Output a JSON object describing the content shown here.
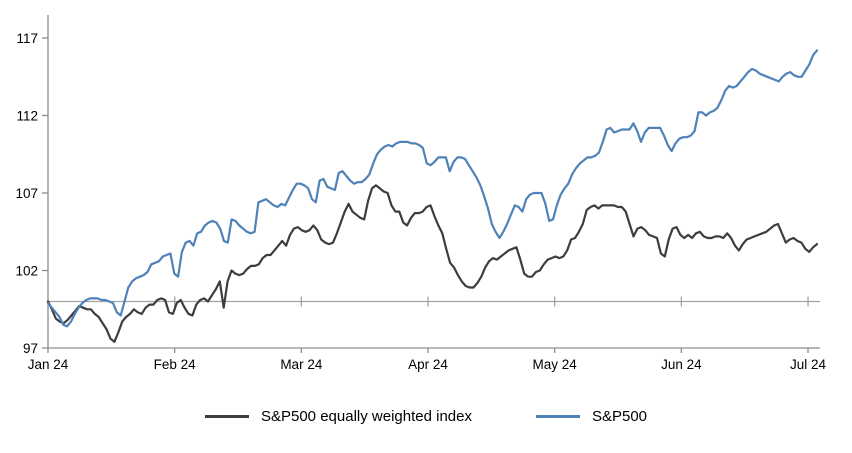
{
  "chart_data": {
    "type": "line",
    "title": "",
    "x_axis": {
      "labels": [
        "Jan 24",
        "Feb 24",
        "Mar 24",
        "Apr 24",
        "May 24",
        "Jun 24",
        "Jul 24"
      ],
      "unit": "month",
      "range_months": [
        0,
        6.07
      ]
    },
    "y_axis": {
      "ticks": [
        97,
        102,
        107,
        112,
        117
      ],
      "range": [
        97,
        118.5
      ]
    },
    "reference_line": {
      "value": 100,
      "color": "#a3a3a3"
    },
    "axis_color": "#8c8c8c",
    "legend_position": "bottom-center",
    "grid": false,
    "series": [
      {
        "name": "S&P500 equally weighted index",
        "color": "#3d3d3d",
        "values": [
          100.0,
          99.5,
          98.9,
          98.7,
          98.6,
          98.8,
          99.1,
          99.4,
          99.7,
          99.6,
          99.5,
          99.5,
          99.2,
          99.0,
          98.6,
          98.2,
          97.6,
          97.4,
          98.0,
          98.7,
          99.0,
          99.2,
          99.5,
          99.3,
          99.2,
          99.6,
          99.8,
          99.8,
          100.1,
          100.2,
          100.1,
          99.3,
          99.2,
          99.9,
          100.1,
          99.6,
          99.2,
          99.1,
          99.8,
          100.1,
          100.2,
          100.0,
          100.4,
          100.8,
          101.3,
          99.6,
          101.3,
          102.0,
          101.8,
          101.7,
          101.8,
          102.1,
          102.3,
          102.3,
          102.4,
          102.8,
          103.0,
          103.0,
          103.3,
          103.6,
          103.9,
          103.6,
          104.3,
          104.7,
          104.8,
          104.6,
          104.5,
          104.6,
          104.9,
          104.6,
          104.0,
          103.8,
          103.7,
          103.8,
          104.4,
          105.1,
          105.8,
          106.3,
          105.8,
          105.6,
          105.4,
          105.3,
          106.5,
          107.3,
          107.5,
          107.3,
          107.1,
          107.0,
          106.2,
          105.8,
          105.8,
          105.1,
          104.9,
          105.4,
          105.7,
          105.7,
          105.8,
          106.1,
          106.2,
          105.5,
          104.9,
          104.4,
          103.4,
          102.5,
          102.2,
          101.7,
          101.3,
          101.0,
          100.9,
          100.9,
          101.2,
          101.6,
          102.2,
          102.6,
          102.8,
          102.7,
          102.9,
          103.1,
          103.3,
          103.4,
          103.5,
          102.7,
          101.8,
          101.6,
          101.6,
          101.9,
          102.0,
          102.4,
          102.7,
          102.8,
          102.9,
          102.8,
          102.9,
          103.3,
          104.0,
          104.1,
          104.5,
          105.0,
          105.9,
          106.1,
          106.2,
          106.0,
          106.2,
          106.2,
          106.2,
          106.2,
          106.1,
          106.1,
          105.8,
          105.0,
          104.2,
          104.7,
          104.8,
          104.6,
          104.3,
          104.2,
          104.1,
          103.1,
          102.9,
          104.0,
          104.7,
          104.8,
          104.3,
          104.1,
          104.3,
          104.1,
          104.4,
          104.5,
          104.2,
          104.1,
          104.1,
          104.2,
          104.2,
          104.1,
          104.4,
          104.1,
          103.6,
          103.3,
          103.7,
          104.0,
          104.1,
          104.2,
          104.3,
          104.4,
          104.5,
          104.7,
          104.9,
          105.0,
          104.4,
          103.8,
          104.0,
          104.1,
          103.9,
          103.8,
          103.4,
          103.2,
          103.5,
          103.7
        ]
      },
      {
        "name": "S&P500",
        "color": "#4e82b8",
        "values": [
          99.9,
          99.6,
          99.3,
          99.0,
          98.5,
          98.4,
          98.7,
          99.2,
          99.6,
          99.9,
          100.1,
          100.2,
          100.2,
          100.2,
          100.1,
          100.1,
          100.0,
          99.9,
          99.3,
          99.1,
          100.0,
          100.9,
          101.3,
          101.5,
          101.6,
          101.7,
          101.9,
          102.4,
          102.5,
          102.6,
          102.9,
          103.0,
          103.1,
          101.8,
          101.6,
          103.2,
          103.8,
          103.9,
          103.6,
          104.4,
          104.5,
          104.9,
          105.1,
          105.2,
          105.1,
          104.7,
          103.9,
          103.8,
          105.3,
          105.2,
          104.9,
          104.7,
          104.5,
          104.4,
          104.5,
          106.4,
          106.5,
          106.6,
          106.4,
          106.2,
          106.1,
          106.3,
          106.2,
          106.7,
          107.2,
          107.6,
          107.6,
          107.5,
          107.3,
          106.6,
          106.4,
          107.8,
          107.9,
          107.4,
          107.3,
          107.2,
          108.3,
          108.4,
          108.1,
          107.8,
          107.6,
          107.7,
          107.7,
          107.9,
          108.2,
          108.9,
          109.5,
          109.8,
          110.0,
          110.1,
          110.0,
          110.2,
          110.3,
          110.3,
          110.3,
          110.2,
          110.2,
          110.1,
          109.9,
          108.9,
          108.8,
          109.0,
          109.3,
          109.3,
          109.3,
          108.4,
          109.0,
          109.3,
          109.3,
          109.2,
          108.8,
          108.4,
          108.0,
          107.5,
          106.8,
          106.0,
          105.0,
          104.5,
          104.1,
          104.5,
          105.0,
          105.6,
          106.2,
          106.1,
          105.8,
          106.6,
          106.9,
          107.0,
          107.0,
          107.0,
          106.3,
          105.2,
          105.3,
          106.2,
          106.9,
          107.3,
          107.6,
          108.2,
          108.6,
          108.9,
          109.1,
          109.3,
          109.3,
          109.4,
          109.6,
          110.3,
          111.1,
          111.2,
          110.9,
          111.0,
          111.1,
          111.1,
          111.1,
          111.5,
          111.0,
          110.3,
          110.9,
          111.2,
          111.2,
          111.2,
          111.2,
          110.7,
          110.1,
          109.7,
          110.2,
          110.5,
          110.6,
          110.6,
          110.7,
          111.0,
          112.2,
          112.2,
          112.0,
          112.2,
          112.3,
          112.5,
          113.0,
          113.6,
          113.9,
          113.8,
          113.9,
          114.2,
          114.5,
          114.8,
          115.0,
          114.9,
          114.7,
          114.6,
          114.5,
          114.4,
          114.3,
          114.2,
          114.5,
          114.7,
          114.8,
          114.6,
          114.5,
          114.5,
          114.9,
          115.3,
          115.9,
          116.2
        ]
      }
    ]
  },
  "legend": {
    "items": [
      {
        "label": "S&P500 equally weighted index"
      },
      {
        "label": "S&P500"
      }
    ]
  }
}
